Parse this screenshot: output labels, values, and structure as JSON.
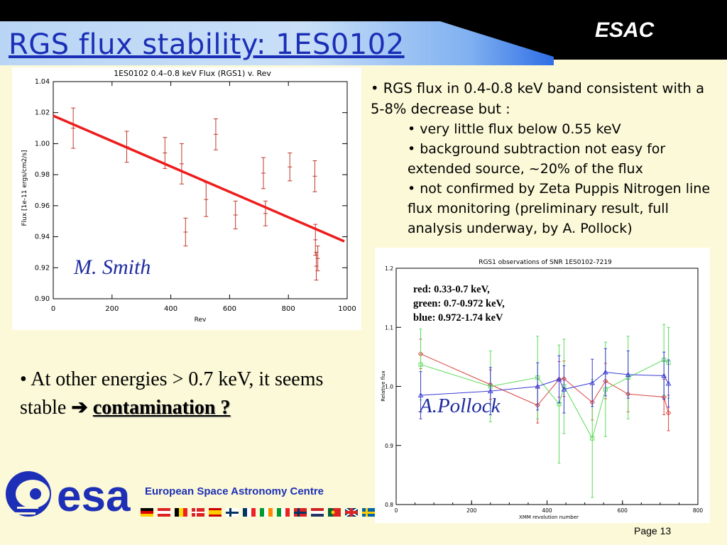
{
  "header": {
    "title": "RGS flux stability: 1ES0102",
    "org": "ESAC"
  },
  "left_plot_author": "M. Smith",
  "right_plot_author": "A.Pollock",
  "right_plot_legend": [
    "red: 0.33-0.7 keV,",
    "green: 0.7-0.972 keV,",
    "blue: 0.972-1.74 keV"
  ],
  "bullets": {
    "main": "• RGS flux in 0.4-0.8 keV band consistent with a 5-8% decrease but :",
    "sub": [
      "• very little flux below 0.55 keV",
      "• background subtraction not easy for extended source, ~20% of the flux",
      "• not confirmed by Zeta Puppis Nitrogen line flux monitoring (preliminary result, full analysis underway, by A. Pollock)"
    ]
  },
  "bottom": {
    "text": "• At other energies > 0.7 keV, it seems stable",
    "arrow": "➔",
    "link": "contamination ?"
  },
  "footer": {
    "logo_text": "esa",
    "centre": "European Space Astronomy Centre",
    "page": "Page 13"
  },
  "colors": {
    "title": "#1b2fb6",
    "fit_line": "#ee1c1c",
    "red": "#d9443e",
    "green": "#5ddc5a",
    "blue": "#3c3cd8"
  },
  "chart_data": [
    {
      "type": "scatter",
      "title": "1ES0102 0.4–0.8 keV Flux (RGS1) v. Rev",
      "xlabel": "Rev",
      "ylabel": "Flux [1e-11 ergs/cm2/s]",
      "xlim": [
        0,
        1000
      ],
      "ylim": [
        0.9,
        1.04
      ],
      "xticks": [
        0,
        200,
        400,
        600,
        800,
        1000
      ],
      "yticks": [
        0.9,
        0.92,
        0.94,
        0.96,
        0.98,
        1.0,
        1.02,
        1.04
      ],
      "xtick_labels": [
        "0",
        "200",
        "400",
        "600",
        "800",
        "1000"
      ],
      "ytick_labels": [
        "0.90",
        "0.92",
        "0.94",
        "0.96",
        "0.98",
        "1.00",
        "1.02",
        "1.04"
      ],
      "points": [
        {
          "x": 68,
          "y": 1.01,
          "err": 0.013
        },
        {
          "x": 250,
          "y": 0.998,
          "err": 0.01
        },
        {
          "x": 380,
          "y": 0.994,
          "err": 0.01
        },
        {
          "x": 437,
          "y": 0.987,
          "err": 0.013
        },
        {
          "x": 450,
          "y": 0.943,
          "err": 0.009
        },
        {
          "x": 520,
          "y": 0.964,
          "err": 0.011
        },
        {
          "x": 553,
          "y": 1.006,
          "err": 0.01
        },
        {
          "x": 620,
          "y": 0.954,
          "err": 0.009
        },
        {
          "x": 715,
          "y": 0.981,
          "err": 0.01
        },
        {
          "x": 722,
          "y": 0.955,
          "err": 0.008
        },
        {
          "x": 805,
          "y": 0.985,
          "err": 0.009
        },
        {
          "x": 890,
          "y": 0.979,
          "err": 0.01
        },
        {
          "x": 892,
          "y": 0.938,
          "err": 0.01
        },
        {
          "x": 895,
          "y": 0.921,
          "err": 0.009
        },
        {
          "x": 900,
          "y": 0.926,
          "err": 0.008
        }
      ],
      "fit_line": {
        "x": [
          0,
          1000
        ],
        "y": [
          1.018,
          0.937
        ]
      }
    },
    {
      "type": "line",
      "title": "RGS1 observations of SNR 1ES0102-7219",
      "xlabel": "XMM revolution number",
      "ylabel": "Relative flux",
      "xlim": [
        0,
        800
      ],
      "ylim": [
        0.8,
        1.2
      ],
      "xticks": [
        0,
        200,
        400,
        600,
        800
      ],
      "yticks": [
        0.8,
        0.9,
        1.0,
        1.1,
        1.2
      ],
      "xtick_labels": [
        "0",
        "200",
        "400",
        "600",
        "800"
      ],
      "ytick_labels": [
        "0.8",
        "0.9",
        "1.0",
        "1.1",
        "1.2"
      ],
      "series": [
        {
          "color": "#d9443e",
          "x": [
            65,
            250,
            375,
            432,
            445,
            520,
            555,
            615,
            710,
            722
          ],
          "y": [
            1.055,
            1.003,
            0.968,
            1.012,
            1.013,
            0.973,
            1.009,
            0.987,
            0.982,
            0.955
          ],
          "err": [
            0.025,
            0.025,
            0.03,
            0.03,
            0.03,
            0.03,
            0.03,
            0.03,
            0.03,
            0.03
          ]
        },
        {
          "color": "#5ddc5a",
          "x": [
            65,
            250,
            375,
            432,
            445,
            520,
            555,
            615,
            710,
            722
          ],
          "y": [
            1.037,
            1.0,
            1.015,
            0.97,
            1.0,
            0.912,
            0.995,
            1.015,
            1.045,
            1.04
          ],
          "err": [
            0.06,
            0.06,
            0.07,
            0.1,
            0.08,
            0.1,
            0.08,
            0.07,
            0.06,
            0.06
          ]
        },
        {
          "color": "#3c3cd8",
          "x": [
            65,
            250,
            375,
            432,
            445,
            520,
            555,
            615,
            710,
            722
          ],
          "y": [
            0.985,
            0.992,
            1.0,
            1.012,
            0.995,
            1.006,
            1.024,
            1.02,
            1.018,
            1.005
          ],
          "err": [
            0.04,
            0.04,
            0.04,
            0.04,
            0.04,
            0.04,
            0.04,
            0.04,
            0.04,
            0.04
          ]
        }
      ]
    }
  ]
}
